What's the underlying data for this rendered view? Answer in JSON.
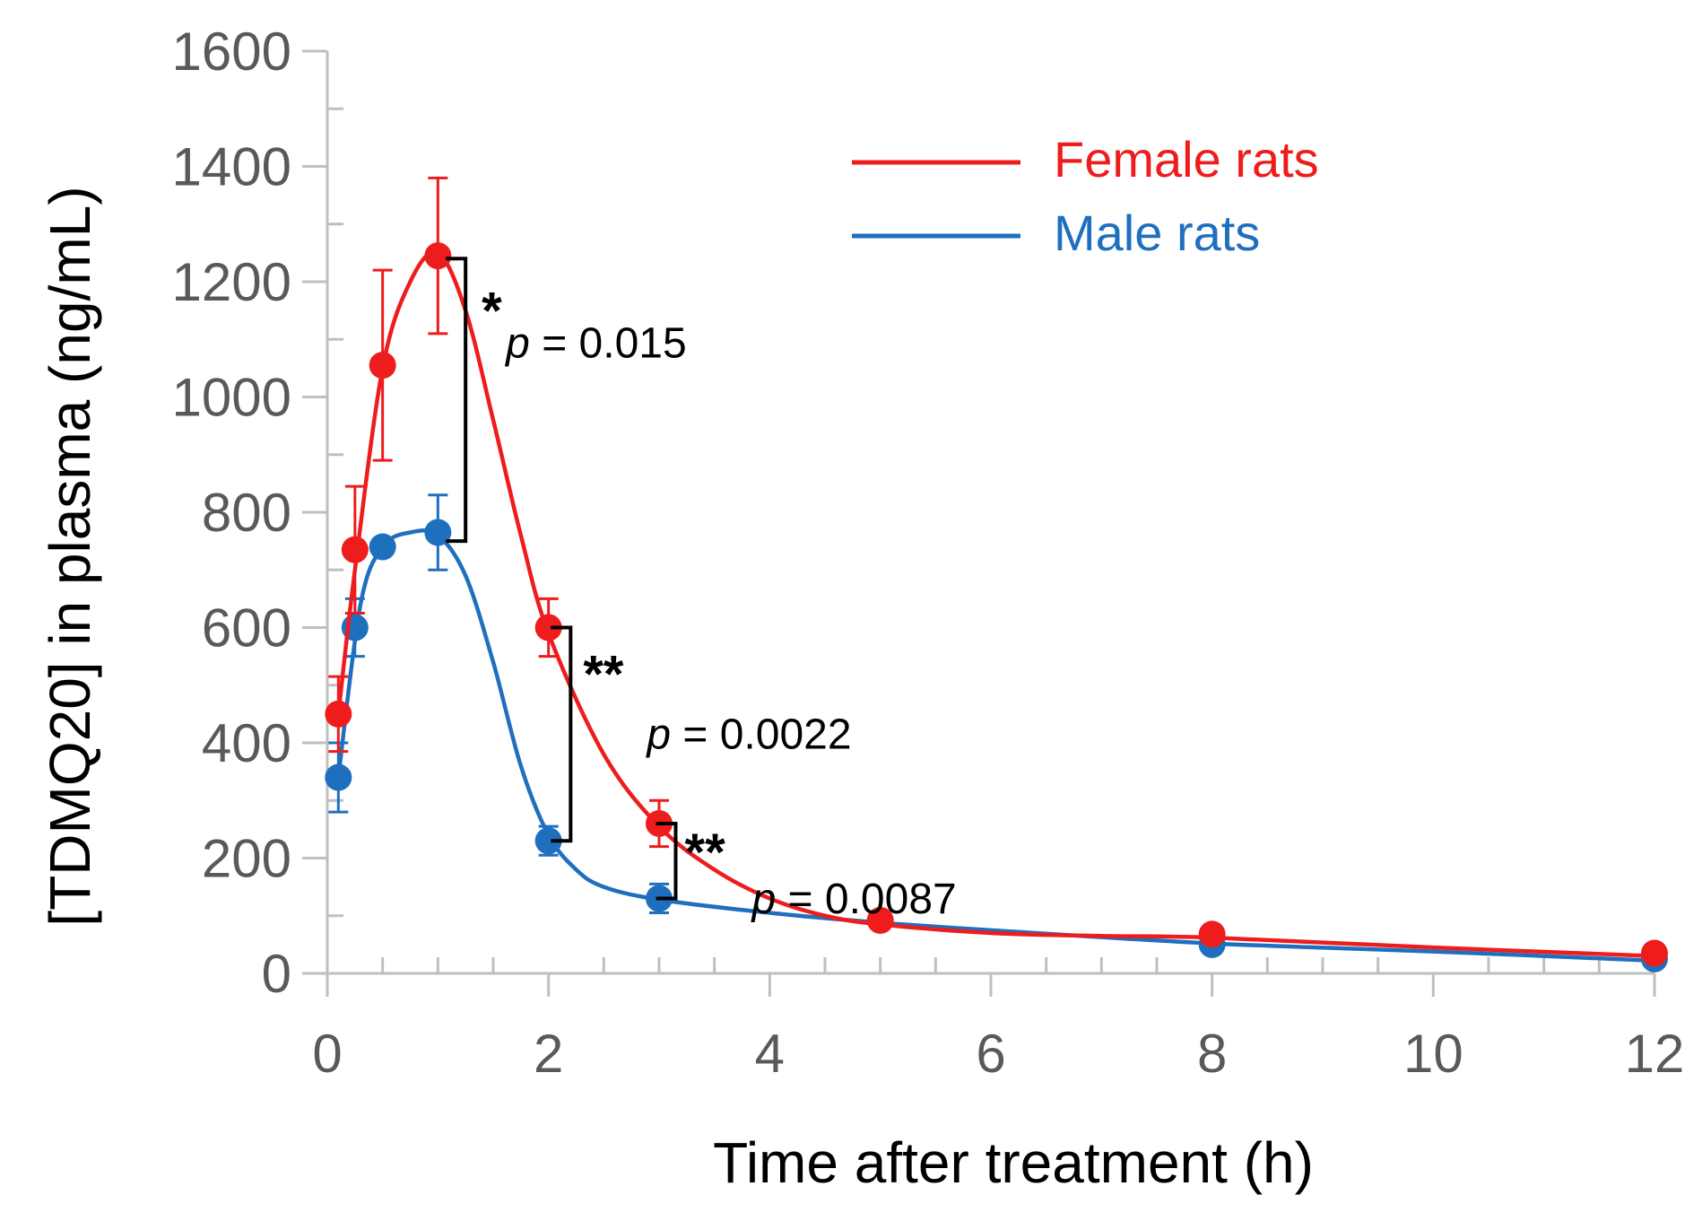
{
  "chart_data": {
    "type": "line",
    "title": "",
    "xlabel": "Time after treatment (h)",
    "ylabel": "[TDMQ20] in plasma (ng/mL)",
    "xlim": [
      0,
      12
    ],
    "ylim": [
      0,
      1600
    ],
    "x_ticks": [
      0,
      2,
      4,
      6,
      8,
      10,
      12
    ],
    "x_tick_labels": [
      "0",
      "2",
      "4",
      "6",
      "8",
      "10",
      "12"
    ],
    "y_ticks": [
      0,
      200,
      400,
      600,
      800,
      1000,
      1200,
      1400,
      1600
    ],
    "y_tick_labels": [
      "0",
      "200",
      "400",
      "600",
      "800",
      "1000",
      "1200",
      "1400",
      "1600"
    ],
    "x_minor_step": 0.5,
    "y_minor_step": 100,
    "grid": false,
    "legend_position": "top-right",
    "series": [
      {
        "name": "Female rats",
        "color": "#ee1c1c",
        "x": [
          0.1,
          0.25,
          0.5,
          1,
          2,
          3,
          5,
          8,
          12
        ],
        "y": [
          450,
          735,
          1055,
          1245,
          600,
          260,
          92,
          68,
          35
        ],
        "err": [
          65,
          110,
          165,
          135,
          50,
          40,
          0,
          0,
          0
        ],
        "curve": [
          [
            0.1,
            450
          ],
          [
            0.25,
            700
          ],
          [
            0.5,
            1050
          ],
          [
            0.75,
            1200
          ],
          [
            1,
            1250
          ],
          [
            1.25,
            1150
          ],
          [
            1.5,
            960
          ],
          [
            1.75,
            760
          ],
          [
            2,
            590
          ],
          [
            2.5,
            380
          ],
          [
            3,
            255
          ],
          [
            3.5,
            180
          ],
          [
            4,
            130
          ],
          [
            4.5,
            100
          ],
          [
            5,
            85
          ],
          [
            6,
            70
          ],
          [
            7,
            65
          ],
          [
            8,
            62
          ],
          [
            10,
            45
          ],
          [
            12,
            30
          ]
        ]
      },
      {
        "name": "Male rats",
        "color": "#1f6fbf",
        "x": [
          0.1,
          0.25,
          0.5,
          1,
          2,
          3,
          8,
          12
        ],
        "y": [
          340,
          600,
          740,
          765,
          230,
          130,
          50,
          25
        ],
        "err": [
          60,
          50,
          0,
          65,
          25,
          25,
          0,
          0
        ],
        "curve": [
          [
            0.1,
            340
          ],
          [
            0.3,
            640
          ],
          [
            0.5,
            740
          ],
          [
            0.75,
            765
          ],
          [
            1,
            760
          ],
          [
            1.25,
            690
          ],
          [
            1.5,
            540
          ],
          [
            1.75,
            360
          ],
          [
            2,
            240
          ],
          [
            2.25,
            180
          ],
          [
            2.5,
            150
          ],
          [
            3,
            128
          ],
          [
            4,
            105
          ],
          [
            5,
            88
          ],
          [
            6,
            75
          ],
          [
            8,
            52
          ],
          [
            10,
            38
          ],
          [
            12,
            22
          ]
        ]
      }
    ],
    "annotations": [
      {
        "id": "p1",
        "stars": "*",
        "p_label": "p",
        "p_value": "= 0.015",
        "x": 1.25,
        "y_top": 1240,
        "y_bottom": 750
      },
      {
        "id": "p2",
        "stars": "**",
        "p_label": "p",
        "p_value": "= 0.0022",
        "x": 2.2,
        "y_top": 600,
        "y_bottom": 230
      },
      {
        "id": "p3",
        "stars": "**",
        "p_label": "p",
        "p_value": "= 0.0087",
        "x": 3.15,
        "y_top": 260,
        "y_bottom": 130
      }
    ]
  }
}
